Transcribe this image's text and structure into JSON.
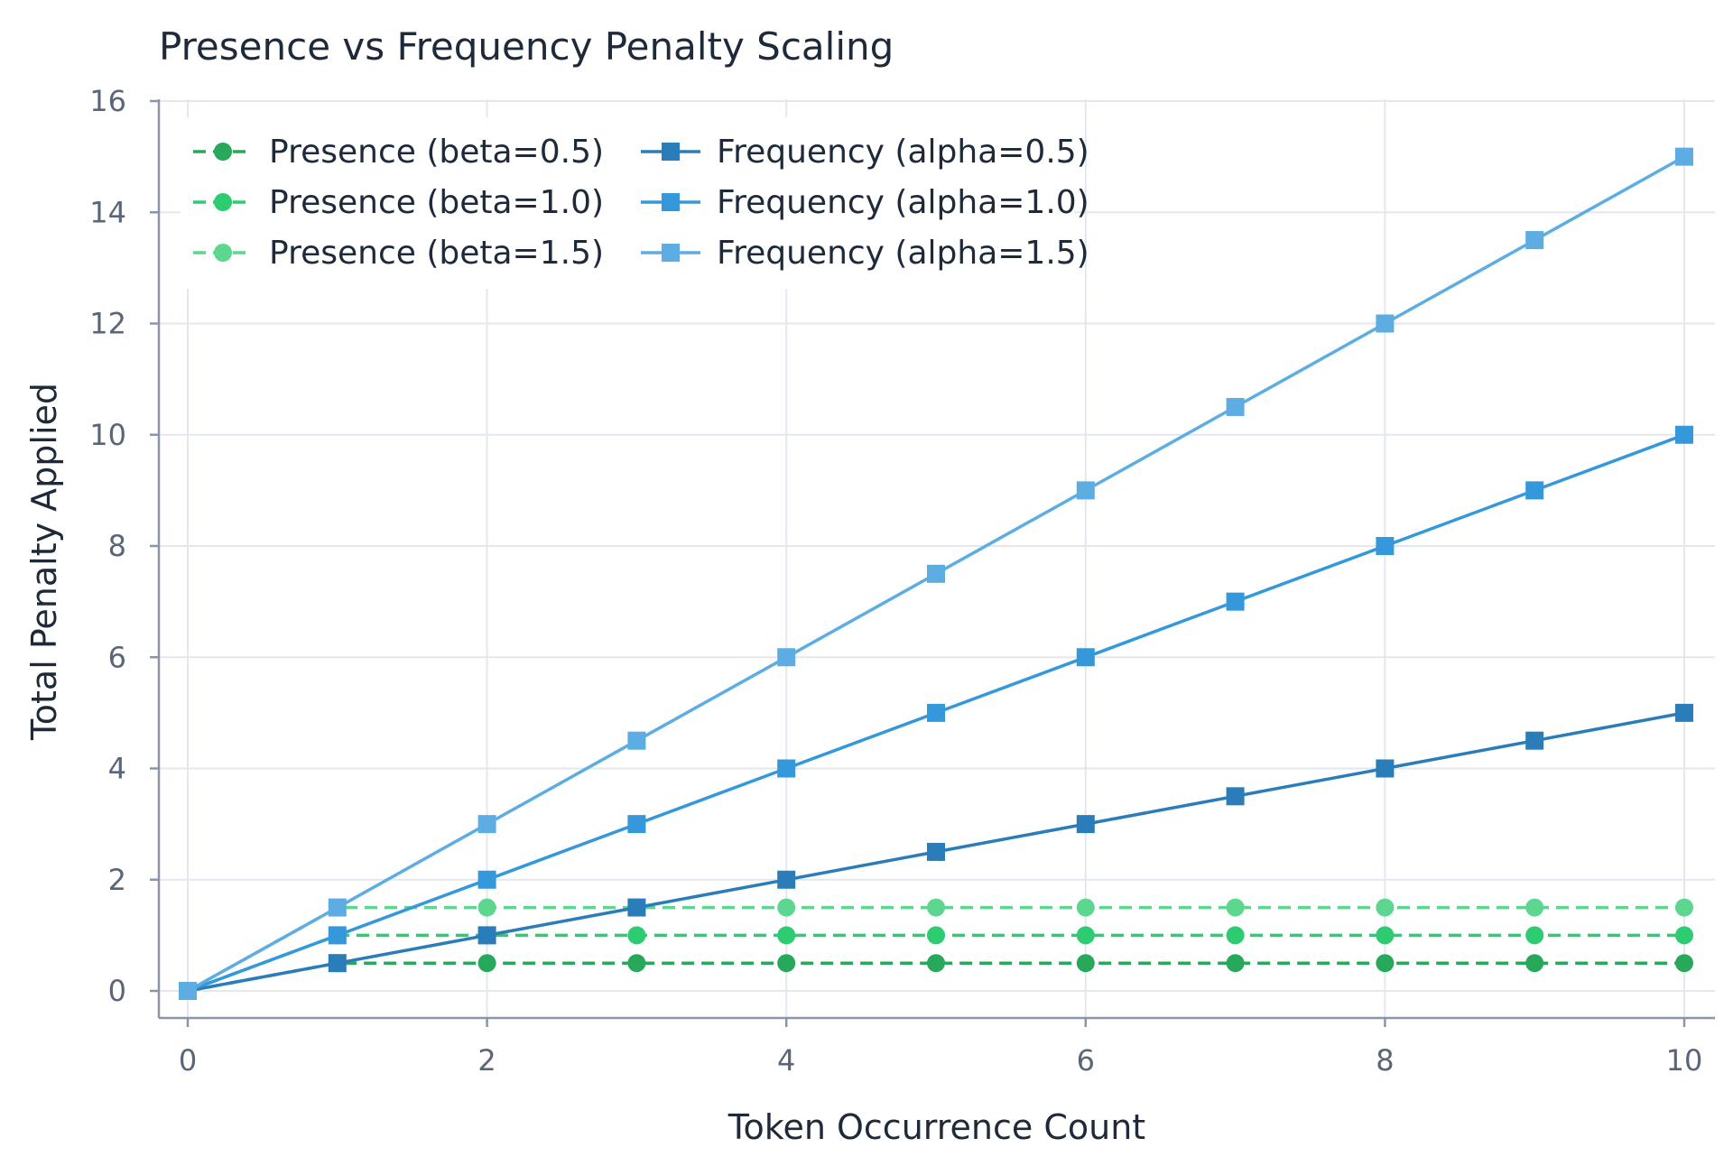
{
  "chart_data": {
    "type": "line",
    "title": "Presence vs Frequency Penalty Scaling",
    "xlabel": "Token Occurrence Count",
    "ylabel": "Total Penalty Applied",
    "xlim": [
      0,
      10
    ],
    "ylim": [
      0,
      16
    ],
    "xticks": [
      0,
      2,
      4,
      6,
      8,
      10
    ],
    "yticks": [
      0,
      2,
      4,
      6,
      8,
      10,
      12,
      14,
      16
    ],
    "grid": true,
    "legend_position": "top-left",
    "x": [
      0,
      1,
      2,
      3,
      4,
      5,
      6,
      7,
      8,
      9,
      10
    ],
    "series": [
      {
        "name": "Presence (beta=0.5)",
        "values": [
          0,
          0.5,
          0.5,
          0.5,
          0.5,
          0.5,
          0.5,
          0.5,
          0.5,
          0.5,
          0.5
        ],
        "color": "#27a85a",
        "line_style": "dashed",
        "marker": "circle"
      },
      {
        "name": "Presence (beta=1.0)",
        "values": [
          0,
          1.0,
          1.0,
          1.0,
          1.0,
          1.0,
          1.0,
          1.0,
          1.0,
          1.0,
          1.0
        ],
        "color": "#2ecc71",
        "line_style": "dashed",
        "marker": "circle"
      },
      {
        "name": "Presence (beta=1.5)",
        "values": [
          0,
          1.5,
          1.5,
          1.5,
          1.5,
          1.5,
          1.5,
          1.5,
          1.5,
          1.5,
          1.5
        ],
        "color": "#5dd68f",
        "line_style": "dashed",
        "marker": "circle"
      },
      {
        "name": "Frequency (alpha=0.5)",
        "values": [
          0,
          0.5,
          1.0,
          1.5,
          2.0,
          2.5,
          3.0,
          3.5,
          4.0,
          4.5,
          5.0
        ],
        "color": "#2a7db8",
        "line_style": "solid",
        "marker": "square"
      },
      {
        "name": "Frequency (alpha=1.0)",
        "values": [
          0,
          1.0,
          2.0,
          3.0,
          4.0,
          5.0,
          6.0,
          7.0,
          8.0,
          9.0,
          10.0
        ],
        "color": "#3498db",
        "line_style": "solid",
        "marker": "square"
      },
      {
        "name": "Frequency (alpha=1.5)",
        "values": [
          0,
          1.5,
          3.0,
          4.5,
          6.0,
          7.5,
          9.0,
          10.5,
          12.0,
          13.5,
          15.0
        ],
        "color": "#5dade2",
        "line_style": "solid",
        "marker": "square"
      }
    ]
  }
}
